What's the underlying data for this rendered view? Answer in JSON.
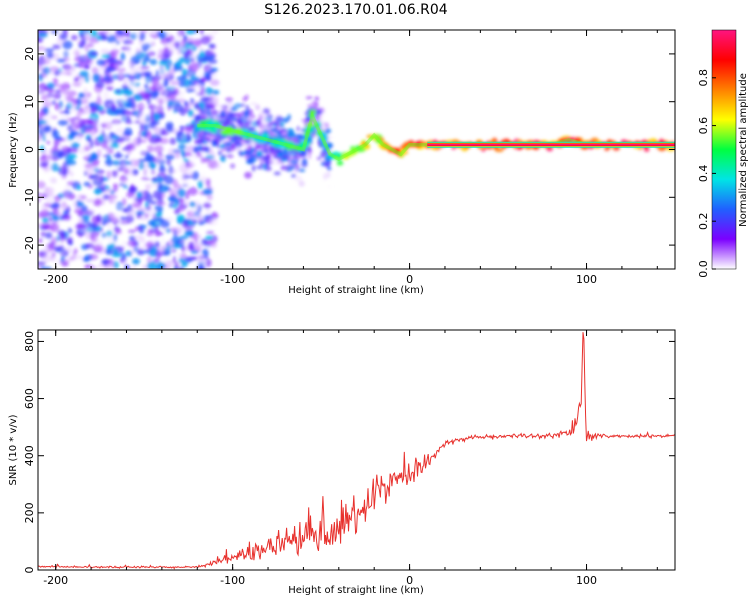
{
  "figure": {
    "title": "S126.2023.170.01.06.R04"
  },
  "chart_data": [
    {
      "type": "heatmap",
      "xlabel": "Height of straight line (km)",
      "ylabel": "Frequency (Hz)",
      "xlim": [
        -210,
        150
      ],
      "ylim": [
        -25,
        25
      ],
      "xticks": [
        -200,
        -100,
        0,
        100
      ],
      "yticks": [
        -20,
        -10,
        0,
        10,
        20
      ],
      "colorbar": {
        "label": "Normalized spectral amplitude",
        "range": [
          0,
          1
        ],
        "ticks": [
          0.0,
          0.2,
          0.4,
          0.6,
          0.8
        ],
        "colormap": [
          "#ffffff",
          "#7b00ff",
          "#2060ff",
          "#00e5e5",
          "#00ff40",
          "#ffff00",
          "#ff8000",
          "#ff0000",
          "#ff1480"
        ]
      },
      "ridge": {
        "x": [
          -120,
          -110,
          -100,
          -90,
          -80,
          -70,
          -60,
          -55,
          -50,
          -45,
          -40,
          -35,
          -30,
          -25,
          -20,
          -15,
          -10,
          -5,
          0,
          10,
          20,
          40,
          60,
          80,
          90,
          100,
          120,
          150
        ],
        "frequency": [
          5,
          5,
          4,
          3,
          2,
          1,
          0,
          7,
          3,
          -1,
          -2,
          -1,
          0,
          1,
          3,
          1,
          0,
          -1,
          1,
          1,
          1,
          1,
          1,
          1,
          2,
          1,
          1,
          1
        ],
        "amplitude": [
          0.5,
          0.55,
          0.6,
          0.5,
          0.45,
          0.55,
          0.5,
          0.6,
          0.55,
          0.45,
          0.6,
          0.65,
          0.7,
          0.75,
          0.8,
          0.8,
          0.85,
          0.9,
          0.95,
          1.0,
          1.0,
          1.0,
          1.0,
          1.0,
          1.0,
          1.0,
          1.0,
          1.0
        ]
      },
      "noise_region_x": [
        -210,
        -120
      ]
    },
    {
      "type": "line",
      "xlabel": "Height of straight line (km)",
      "ylabel": "SNR (10 * v/v)",
      "xlim": [
        -210,
        150
      ],
      "ylim": [
        0,
        840
      ],
      "xticks": [
        -200,
        -100,
        0,
        100
      ],
      "yticks": [
        0,
        200,
        400,
        600,
        800
      ],
      "series": [
        {
          "color": "#e8322e",
          "x": [
            -210,
            -200,
            -180,
            -160,
            -140,
            -120,
            -110,
            -100,
            -90,
            -80,
            -70,
            -60,
            -50,
            -40,
            -30,
            -20,
            -10,
            0,
            10,
            20,
            30,
            40,
            50,
            60,
            70,
            80,
            90,
            95,
            97,
            98,
            100,
            105,
            110,
            120,
            130,
            140,
            150
          ],
          "y": [
            12,
            12,
            10,
            10,
            10,
            10,
            25,
            40,
            60,
            80,
            100,
            120,
            130,
            150,
            200,
            260,
            300,
            330,
            380,
            440,
            460,
            465,
            468,
            470,
            470,
            470,
            480,
            520,
            620,
            840,
            460,
            470,
            470,
            468,
            468,
            470,
            470
          ],
          "noise": [
            5,
            5,
            5,
            5,
            5,
            5,
            15,
            25,
            40,
            60,
            70,
            90,
            95,
            100,
            110,
            110,
            100,
            80,
            50,
            20,
            12,
            12,
            12,
            12,
            12,
            15,
            25,
            60,
            120,
            200,
            40,
            15,
            10,
            8,
            8,
            8,
            8
          ]
        }
      ]
    }
  ]
}
